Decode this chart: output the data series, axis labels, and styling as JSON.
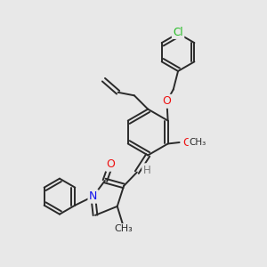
{
  "background_color": "#e8e8e8",
  "bond_color": "#2a2a2a",
  "bond_width": 1.4,
  "atom_colors": {
    "C": "#2a2a2a",
    "N": "#1010ee",
    "O": "#ee1010",
    "Cl": "#22bb22",
    "H": "#777777"
  }
}
